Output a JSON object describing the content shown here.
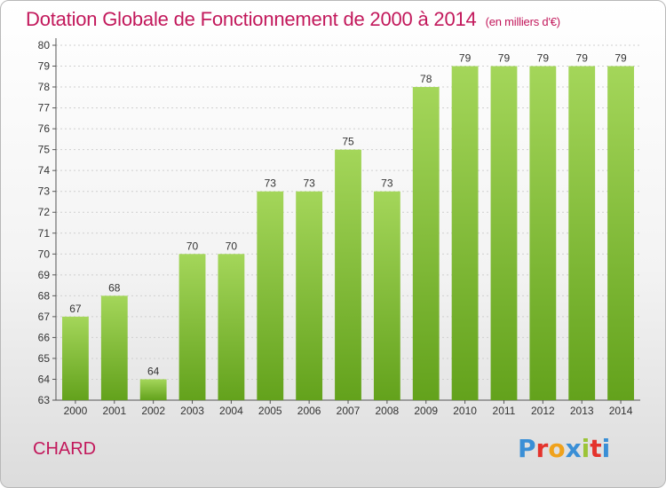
{
  "header": {
    "title": "Dotation Globale de Fonctionnement de 2000 à 2014",
    "subtitle": "(en milliers d'€)"
  },
  "footer": {
    "commune": "CHARD",
    "logo": {
      "letters": [
        "P",
        "r",
        "o",
        "x",
        "i",
        "t",
        "i"
      ],
      "colors": [
        "#3a8fd6",
        "#e4332c",
        "#f0a21c",
        "#3a8fd6",
        "#9bc437",
        "#e4332c",
        "#3a8fd6"
      ]
    }
  },
  "colors": {
    "bar_light": "#a4d65a",
    "bar_dark": "#63a21c",
    "title": "#c2185b"
  },
  "chart_data": {
    "type": "bar",
    "title": "Dotation Globale de Fonctionnement de 2000 à 2014",
    "subtitle": "(en milliers d'€)",
    "categories": [
      "2000",
      "2001",
      "2002",
      "2003",
      "2004",
      "2005",
      "2006",
      "2007",
      "2008",
      "2009",
      "2010",
      "2011",
      "2012",
      "2013",
      "2014"
    ],
    "values": [
      67,
      68,
      64,
      70,
      70,
      73,
      73,
      75,
      73,
      78,
      79,
      79,
      79,
      79,
      79
    ],
    "ylim": [
      63,
      80
    ],
    "yticks": [
      63,
      64,
      65,
      66,
      67,
      68,
      69,
      70,
      71,
      72,
      73,
      74,
      75,
      76,
      77,
      78,
      79,
      80
    ],
    "grid": true,
    "data_labels": true,
    "legend": "none"
  }
}
